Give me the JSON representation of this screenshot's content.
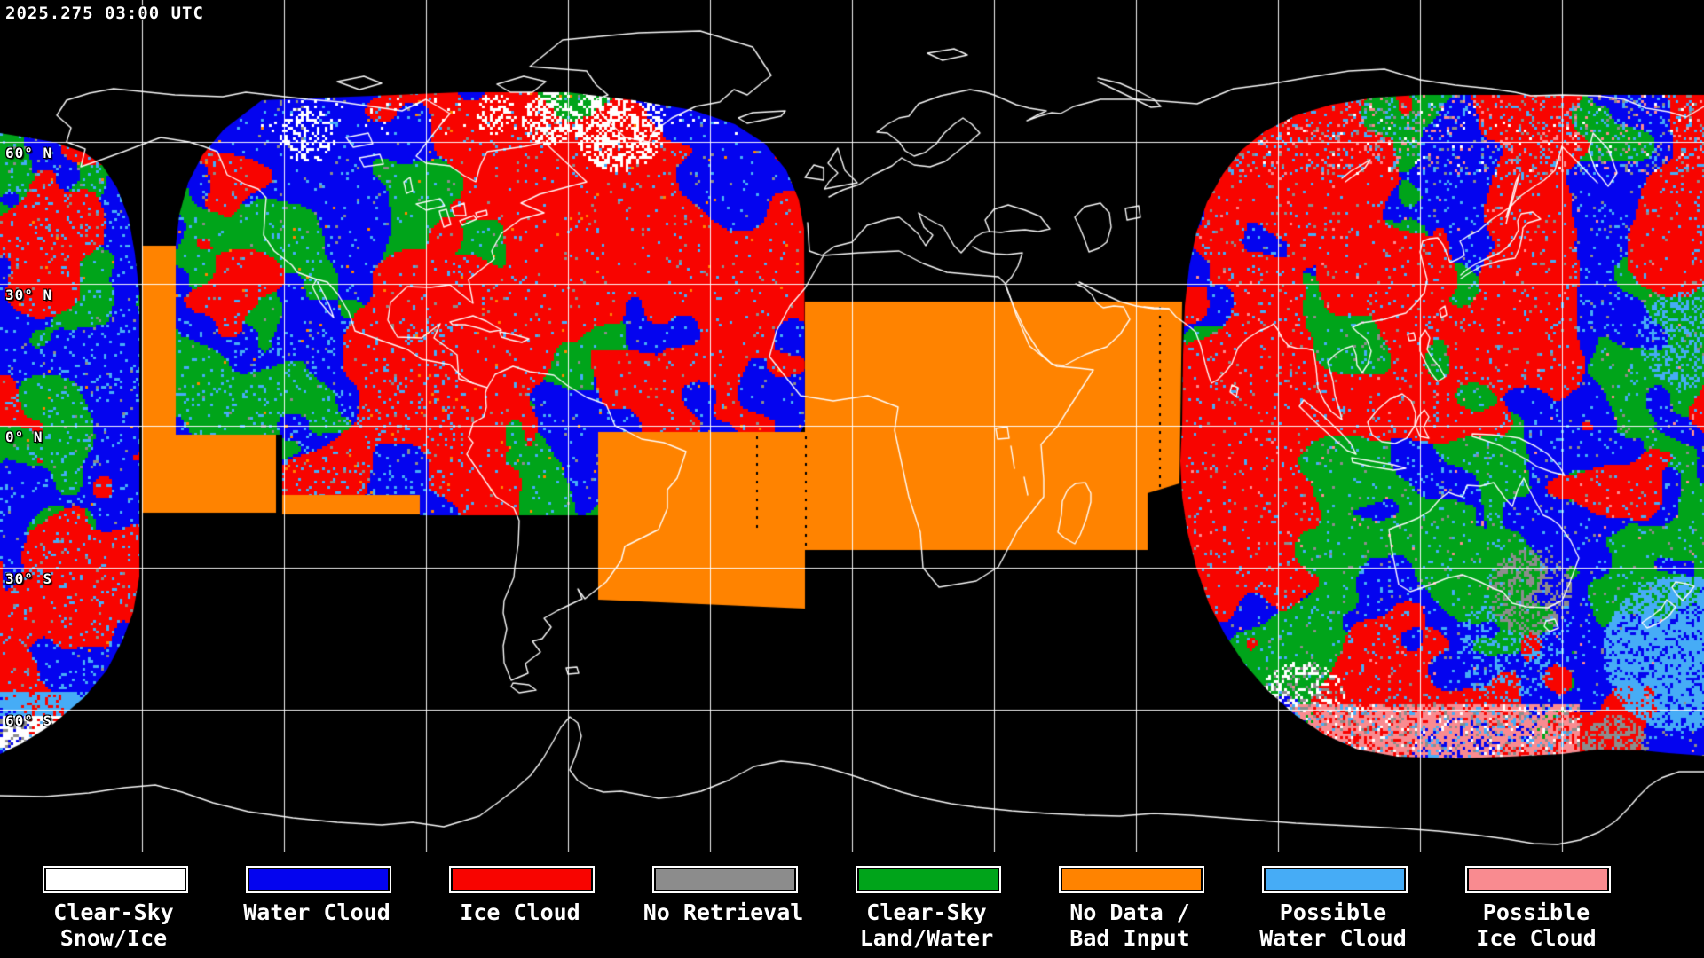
{
  "header": {
    "timestamp": "2025.275 03:00 UTC"
  },
  "map": {
    "projection": "equirectangular",
    "latitude_labels": [
      {
        "text": "60° N"
      },
      {
        "text": "30° N"
      },
      {
        "text": "0° N"
      },
      {
        "text": "30° S"
      },
      {
        "text": "60° S"
      }
    ],
    "grid": {
      "lat_step_deg": 30,
      "lon_step_deg": 30,
      "color": "#FFFFFF"
    },
    "coastline_color": "#FFFFFF",
    "background": "#000000"
  },
  "palette": {
    "clear_sky_snow_ice": "#FFFFFF",
    "water_cloud": "#0404EF",
    "ice_cloud": "#F80400",
    "no_retrieval": "#8C8C8C",
    "clear_sky_land_water": "#00A41A",
    "no_data_bad_input": "#FF8300",
    "possible_water_cloud": "#46ACF6",
    "possible_ice_cloud": "#F98B90"
  },
  "legend": {
    "items": [
      {
        "key": "clear_sky_snow_ice",
        "line1": "Clear-Sky",
        "line2": "Snow/Ice"
      },
      {
        "key": "water_cloud",
        "line1": "Water Cloud",
        "line2": ""
      },
      {
        "key": "ice_cloud",
        "line1": "Ice Cloud",
        "line2": ""
      },
      {
        "key": "no_retrieval",
        "line1": "No Retrieval",
        "line2": ""
      },
      {
        "key": "clear_sky_land_water",
        "line1": "Clear-Sky",
        "line2": "Land/Water"
      },
      {
        "key": "no_data_bad_input",
        "line1": "No Data /",
        "line2": "Bad Input"
      },
      {
        "key": "possible_water_cloud",
        "line1": "Possible",
        "line2": "Water Cloud"
      },
      {
        "key": "possible_ice_cloud",
        "line1": "Possible",
        "line2": "Ice Cloud"
      }
    ]
  }
}
